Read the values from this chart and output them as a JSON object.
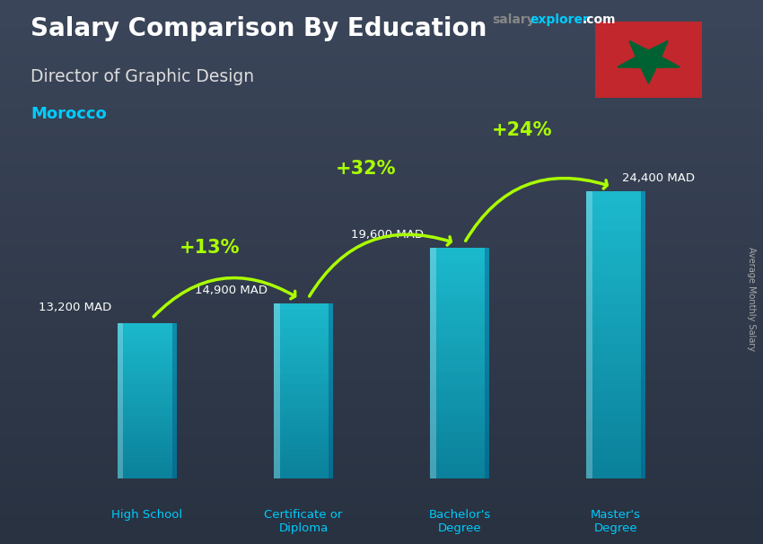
{
  "title": "Salary Comparison By Education",
  "subtitle": "Director of Graphic Design",
  "country": "Morocco",
  "ylabel": "Average Monthly Salary",
  "categories": [
    "High School",
    "Certificate or\nDiploma",
    "Bachelor's\nDegree",
    "Master's\nDegree"
  ],
  "values": [
    13200,
    14900,
    19600,
    24400
  ],
  "value_labels": [
    "13,200 MAD",
    "14,900 MAD",
    "19,600 MAD",
    "24,400 MAD"
  ],
  "pct_labels": [
    "+13%",
    "+32%",
    "+24%"
  ],
  "bar_color_light": "#00e5ff",
  "bar_color_dark": "#0099bb",
  "bar_alpha": 0.72,
  "bg_overlay_color": "#1a2535",
  "bg_overlay_alpha": 0.55,
  "title_color": "#ffffff",
  "subtitle_color": "#dddddd",
  "country_color": "#00ccff",
  "value_color": "#ffffff",
  "pct_color": "#aaff00",
  "arrow_color": "#aaff00",
  "xlabel_color": "#00ccff",
  "flag_red": "#c1272d",
  "flag_green": "#006233",
  "ylim_max": 30000,
  "bar_bottom": 0,
  "site_salary_color": "#888888",
  "site_explorer_color": "#00ccff",
  "site_com_color": "#ffffff"
}
